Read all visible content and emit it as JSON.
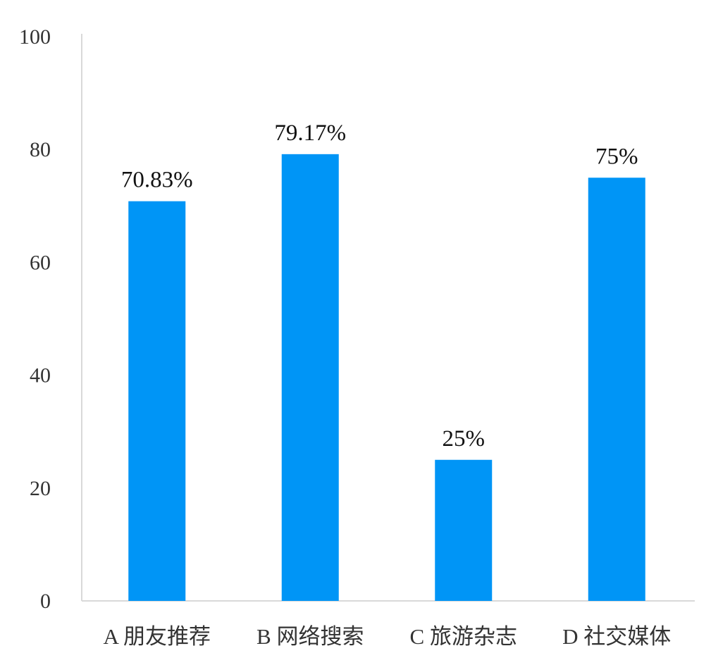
{
  "chart_data": {
    "type": "bar",
    "categories": [
      "A 朋友推荐",
      "B 网络搜索",
      "C 旅游杂志",
      "D 社交媒体"
    ],
    "values": [
      70.83,
      79.17,
      25,
      75
    ],
    "data_labels": [
      "70.83%",
      "79.17%",
      "25%",
      "75%"
    ],
    "title": "",
    "xlabel": "",
    "ylabel": "",
    "ylim": [
      0,
      100
    ],
    "yticks": [
      0,
      20,
      40,
      60,
      80,
      100
    ],
    "ytick_labels": [
      "0",
      "20",
      "40",
      "60",
      "80",
      "100"
    ],
    "grid": false,
    "legend": "none",
    "bar_color": "#0095F6",
    "axis_color": "#D9D9D9"
  }
}
